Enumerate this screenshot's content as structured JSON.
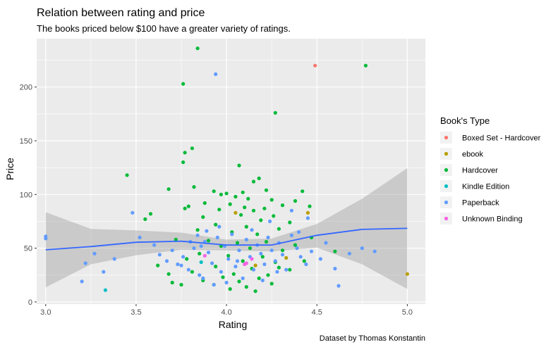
{
  "chart_data": {
    "type": "scatter",
    "title": "Relation between rating and price",
    "subtitle": "The books priced below $100 have a greater variety of ratings.",
    "xlabel": "Rating",
    "ylabel": "Price",
    "caption": "Dataset by Thomas Konstantin",
    "xlim": [
      2.95,
      5.1
    ],
    "ylim": [
      -2,
      245
    ],
    "x_ticks": [
      "3.0",
      "3.5",
      "4.0",
      "4.5",
      "5.0"
    ],
    "x_tick_values": [
      3.0,
      3.5,
      4.0,
      4.5,
      5.0
    ],
    "y_ticks": [
      "0",
      "50",
      "100",
      "150",
      "200"
    ],
    "y_tick_values": [
      0,
      50,
      100,
      150,
      200
    ],
    "grid": true,
    "legend": {
      "title": "Book's Type",
      "placement": "right"
    },
    "series": [
      {
        "name": "Boxed Set - Hardcover",
        "color": "#F8766D",
        "points": [
          [
            4.49,
            220
          ]
        ]
      },
      {
        "name": "ebook",
        "color": "#B79F00",
        "points": [
          [
            4.45,
            83
          ],
          [
            5.0,
            26
          ],
          [
            4.16,
            34
          ],
          [
            4.05,
            83
          ],
          [
            4.33,
            41
          ]
        ]
      },
      {
        "name": "Hardcover",
        "color": "#00BA38",
        "points": [
          [
            3.84,
            236
          ],
          [
            3.76,
            203
          ],
          [
            4.77,
            220
          ],
          [
            4.27,
            176
          ],
          [
            3.81,
            143
          ],
          [
            3.77,
            139
          ],
          [
            3.76,
            130
          ],
          [
            4.07,
            127
          ],
          [
            3.45,
            118
          ],
          [
            4.18,
            115
          ],
          [
            4.15,
            112
          ],
          [
            3.82,
            107
          ],
          [
            3.68,
            105
          ],
          [
            4.22,
            104
          ],
          [
            4.42,
            103
          ],
          [
            3.93,
            103
          ],
          [
            4.09,
            102
          ],
          [
            4.0,
            101
          ],
          [
            3.97,
            100
          ],
          [
            4.05,
            98
          ],
          [
            4.12,
            96
          ],
          [
            4.25,
            95
          ],
          [
            4.38,
            94
          ],
          [
            3.88,
            92
          ],
          [
            4.02,
            91
          ],
          [
            4.31,
            90
          ],
          [
            3.79,
            89
          ],
          [
            4.46,
            89
          ],
          [
            4.1,
            88
          ],
          [
            4.21,
            87
          ],
          [
            3.96,
            86
          ],
          [
            4.15,
            85
          ],
          [
            3.58,
            82
          ],
          [
            3.77,
            87
          ],
          [
            4.08,
            81
          ],
          [
            4.26,
            80
          ],
          [
            3.87,
            79
          ],
          [
            3.55,
            77
          ],
          [
            4.19,
            76
          ],
          [
            4.35,
            74
          ],
          [
            3.94,
            72
          ],
          [
            4.11,
            70
          ],
          [
            4.29,
            68
          ],
          [
            3.84,
            67
          ],
          [
            4.03,
            65
          ],
          [
            4.17,
            63
          ],
          [
            4.47,
            60
          ],
          [
            3.72,
            58
          ],
          [
            3.9,
            57
          ],
          [
            4.22,
            56
          ],
          [
            4.06,
            55
          ],
          [
            4.38,
            53
          ],
          [
            3.97,
            52
          ],
          [
            4.13,
            50
          ],
          [
            4.31,
            48
          ],
          [
            4.6,
            47
          ],
          [
            3.85,
            45
          ],
          [
            4.01,
            43
          ],
          [
            4.2,
            42
          ],
          [
            3.78,
            40
          ],
          [
            4.09,
            38
          ],
          [
            4.27,
            37
          ],
          [
            3.62,
            34
          ],
          [
            3.94,
            33
          ],
          [
            4.14,
            31
          ],
          [
            4.35,
            30
          ],
          [
            3.81,
            28
          ],
          [
            4.04,
            26
          ],
          [
            4.23,
            25
          ],
          [
            3.98,
            23
          ],
          [
            4.18,
            22
          ],
          [
            3.87,
            20
          ],
          [
            4.07,
            19
          ],
          [
            3.7,
            18
          ],
          [
            4.25,
            17
          ],
          [
            3.93,
            16
          ],
          [
            4.11,
            14
          ],
          [
            4.02,
            12
          ],
          [
            4.16,
            10
          ],
          [
            3.75,
            16
          ],
          [
            4.43,
            38
          ],
          [
            4.29,
            32
          ],
          [
            3.68,
            26
          ]
        ]
      },
      {
        "name": "Kindle Edition",
        "color": "#00BFC4",
        "points": [
          [
            3.33,
            11
          ],
          [
            3.86,
            37
          ]
        ]
      },
      {
        "name": "Paperback",
        "color": "#619CFF",
        "points": [
          [
            3.94,
            212
          ],
          [
            3.0,
            61
          ],
          [
            3.0,
            59
          ],
          [
            3.48,
            83
          ],
          [
            3.2,
            19
          ],
          [
            3.22,
            36
          ],
          [
            3.27,
            45
          ],
          [
            3.32,
            28
          ],
          [
            3.38,
            40
          ],
          [
            3.52,
            60
          ],
          [
            3.6,
            53
          ],
          [
            3.63,
            44
          ],
          [
            3.67,
            38
          ],
          [
            3.7,
            48
          ],
          [
            3.73,
            35
          ],
          [
            3.76,
            42
          ],
          [
            3.79,
            30
          ],
          [
            3.82,
            50
          ],
          [
            3.85,
            25
          ],
          [
            3.88,
            56
          ],
          [
            3.9,
            46
          ],
          [
            3.92,
            36
          ],
          [
            3.95,
            60
          ],
          [
            3.97,
            28
          ],
          [
            3.99,
            52
          ],
          [
            4.01,
            40
          ],
          [
            4.03,
            63
          ],
          [
            4.05,
            33
          ],
          [
            4.07,
            48
          ],
          [
            4.09,
            22
          ],
          [
            4.11,
            58
          ],
          [
            4.13,
            42
          ],
          [
            4.15,
            30
          ],
          [
            4.17,
            53
          ],
          [
            4.19,
            45
          ],
          [
            4.21,
            35
          ],
          [
            4.23,
            60
          ],
          [
            4.25,
            48
          ],
          [
            4.27,
            38
          ],
          [
            4.29,
            55
          ],
          [
            4.31,
            44
          ],
          [
            4.33,
            30
          ],
          [
            4.36,
            62
          ],
          [
            4.39,
            50
          ],
          [
            4.41,
            42
          ],
          [
            4.44,
            35
          ],
          [
            4.47,
            47
          ],
          [
            4.52,
            40
          ],
          [
            4.55,
            55
          ],
          [
            4.6,
            31
          ],
          [
            4.62,
            15
          ],
          [
            4.68,
            45
          ],
          [
            4.75,
            50
          ],
          [
            4.82,
            47
          ],
          [
            4.4,
            65
          ],
          [
            4.45,
            78
          ],
          [
            4.36,
            85
          ],
          [
            3.96,
            70
          ],
          [
            4.14,
            67
          ],
          [
            4.24,
            75
          ],
          [
            3.87,
            22
          ],
          [
            3.93,
            16
          ],
          [
            4.0,
            18
          ],
          [
            4.2,
            20
          ],
          [
            3.8,
            56
          ],
          [
            3.84,
            62
          ],
          [
            3.89,
            66
          ],
          [
            4.06,
            38
          ],
          [
            4.28,
            28
          ],
          [
            3.75,
            34
          ],
          [
            3.86,
            52
          ]
        ]
      },
      {
        "name": "Unknown Binding",
        "color": "#F564E3",
        "points": [
          [
            4.11,
            36
          ],
          [
            4.1,
            35
          ],
          [
            4.14,
            40
          ],
          [
            3.88,
            43
          ]
        ]
      }
    ],
    "smooth": {
      "color": "#3366FF",
      "x": [
        3.0,
        3.25,
        3.5,
        3.75,
        4.0,
        4.25,
        4.5,
        4.75,
        5.0
      ],
      "y": [
        48.5,
        51.5,
        55.5,
        56.5,
        53.0,
        53.0,
        62.0,
        67.5,
        68.5
      ],
      "lower": [
        13.5,
        35.0,
        43.5,
        48.5,
        48.0,
        47.0,
        50.5,
        35.0,
        12.0
      ],
      "upper": [
        83.5,
        68.0,
        66.5,
        64.5,
        58.0,
        59.0,
        72.5,
        96.0,
        124.5
      ]
    }
  }
}
